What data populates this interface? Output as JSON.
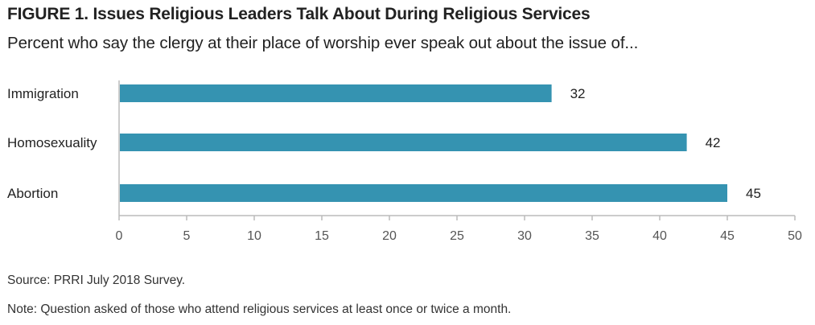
{
  "header": {
    "title": "FIGURE 1. Issues Religious Leaders Talk About During Religious Services",
    "subtitle": "Percent who say the clergy at their place of worship ever speak out about the issue of..."
  },
  "footer": {
    "source": "Source: PRRI July 2018 Survey.",
    "note": "Note: Question asked of those who attend religious services at least once or twice a month."
  },
  "chart_data": {
    "type": "bar",
    "orientation": "horizontal",
    "categories": [
      "Immigration",
      "Homosexuality",
      "Abortion"
    ],
    "values": [
      32,
      42,
      45
    ],
    "value_labels": [
      "32",
      "42",
      "45"
    ],
    "xlim": [
      0,
      50
    ],
    "xticks": [
      0,
      5,
      10,
      15,
      20,
      25,
      30,
      35,
      40,
      45,
      50
    ],
    "xtick_labels": [
      "0",
      "5",
      "10",
      "15",
      "20",
      "25",
      "30",
      "35",
      "40",
      "45",
      "50"
    ],
    "bar_color": "#3593b1",
    "grid": false,
    "legend": "none"
  }
}
